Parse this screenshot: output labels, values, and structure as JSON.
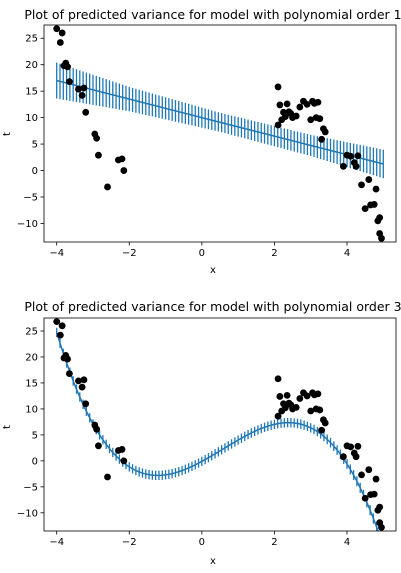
{
  "colors": {
    "line": "#1f77b4",
    "errorbar": "#1f77b4",
    "points": "#000000",
    "axes": "#000000"
  },
  "chart_data": [
    {
      "type": "line",
      "title": "Plot of predicted variance for model with polynomial order 1",
      "xlabel": "x",
      "ylabel": "t",
      "xlim": [
        -4.35,
        5.35
      ],
      "ylim": [
        -13.5,
        27.5
      ],
      "xticks": [
        -4,
        -2,
        0,
        2,
        4
      ],
      "yticks": [
        -10,
        -5,
        0,
        5,
        10,
        15,
        20,
        25
      ],
      "fit": {
        "coeffs": [
          10.0,
          -1.75
        ],
        "errorbar_halfwidth": [
          3.4,
          2.3,
          1.8,
          2.0,
          2.7
        ],
        "errorbar_halfwidth_x": [
          -4,
          -2,
          0.5,
          3,
          5
        ]
      },
      "points": {
        "x": [
          -4.0,
          -3.9,
          -3.85,
          -3.8,
          -3.75,
          -3.7,
          -3.65,
          -3.4,
          -3.3,
          -3.25,
          -3.2,
          -2.95,
          -2.9,
          -2.85,
          -2.6,
          -2.3,
          -2.2,
          -2.15,
          2.1,
          2.1,
          2.15,
          2.2,
          2.25,
          2.3,
          2.35,
          2.4,
          2.45,
          2.5,
          2.6,
          2.7,
          2.8,
          2.9,
          3.0,
          3.05,
          3.1,
          3.15,
          3.2,
          3.25,
          3.3,
          3.35,
          3.4,
          3.9,
          4.0,
          4.1,
          4.2,
          4.25,
          4.3,
          4.4,
          4.5,
          4.6,
          4.65,
          4.75,
          4.8,
          4.85,
          4.9,
          4.9,
          4.95
        ],
        "y": [
          26.8,
          24.2,
          26.0,
          19.8,
          20.3,
          19.6,
          16.8,
          15.4,
          14.2,
          15.6,
          11.0,
          6.9,
          6.1,
          2.9,
          -3.1,
          2.0,
          2.2,
          0.0,
          15.8,
          8.6,
          12.4,
          9.6,
          11.0,
          10.2,
          12.6,
          11.1,
          10.8,
          10.0,
          10.3,
          12.0,
          13.1,
          12.5,
          9.6,
          13.1,
          12.7,
          10.0,
          12.9,
          9.8,
          5.9,
          7.9,
          7.3,
          0.8,
          2.9,
          2.7,
          1.5,
          0.8,
          2.8,
          -2.7,
          -7.2,
          -1.7,
          -6.5,
          -6.4,
          -3.5,
          -9.5,
          -8.9,
          -11.9,
          -12.8
        ]
      }
    },
    {
      "type": "line",
      "title": "Plot of predicted variance for model with polynomial order 3",
      "xlabel": "x",
      "ylabel": "t",
      "xlim": [
        -4.35,
        5.35
      ],
      "ylim": [
        -13.5,
        27.5
      ],
      "xticks": [
        -4,
        -2,
        0,
        2,
        4
      ],
      "yticks": [
        -10,
        -5,
        0,
        5,
        10,
        15,
        20,
        25
      ],
      "fit": {
        "coeffs": [
          -0.1,
          3.78,
          0.76,
          -0.434
        ],
        "errorbar_halfwidth": [
          0.9,
          0.9,
          0.9,
          0.9,
          1.0
        ],
        "errorbar_halfwidth_x": [
          -4,
          -2,
          0.5,
          3,
          5
        ]
      },
      "points": {
        "x": [
          -4.0,
          -3.9,
          -3.85,
          -3.8,
          -3.75,
          -3.7,
          -3.65,
          -3.4,
          -3.3,
          -3.25,
          -3.2,
          -2.95,
          -2.9,
          -2.85,
          -2.6,
          -2.3,
          -2.2,
          -2.15,
          2.1,
          2.1,
          2.15,
          2.2,
          2.25,
          2.3,
          2.35,
          2.4,
          2.45,
          2.5,
          2.6,
          2.7,
          2.8,
          2.9,
          3.0,
          3.05,
          3.1,
          3.15,
          3.2,
          3.25,
          3.3,
          3.35,
          3.4,
          3.9,
          4.0,
          4.1,
          4.2,
          4.25,
          4.3,
          4.4,
          4.5,
          4.6,
          4.65,
          4.75,
          4.8,
          4.85,
          4.9,
          4.9,
          4.95
        ],
        "y": [
          26.8,
          24.2,
          26.0,
          19.8,
          20.3,
          19.6,
          16.8,
          15.4,
          14.2,
          15.6,
          11.0,
          6.9,
          6.1,
          2.9,
          -3.1,
          2.0,
          2.2,
          0.0,
          15.8,
          8.6,
          12.4,
          9.6,
          11.0,
          10.2,
          12.6,
          11.1,
          10.8,
          10.0,
          10.3,
          12.0,
          13.1,
          12.5,
          9.6,
          13.1,
          12.7,
          10.0,
          12.9,
          9.8,
          5.9,
          7.9,
          7.3,
          0.8,
          2.9,
          2.7,
          1.5,
          0.8,
          2.8,
          -2.7,
          -7.2,
          -1.7,
          -6.5,
          -6.4,
          -3.5,
          -9.5,
          -8.9,
          -11.9,
          -12.8
        ]
      }
    }
  ]
}
